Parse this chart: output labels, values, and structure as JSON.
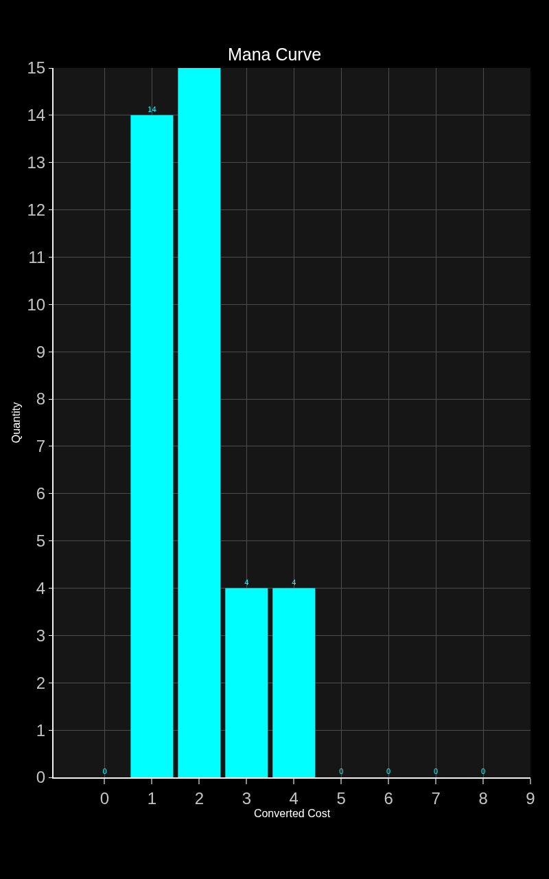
{
  "chart_data": {
    "type": "bar",
    "title": "Mana Curve",
    "xlabel": "Converted Cost",
    "ylabel": "Quantity",
    "x": [
      0,
      1,
      2,
      3,
      4,
      5,
      6,
      7,
      8
    ],
    "values": [
      0,
      14,
      15,
      4,
      4,
      0,
      0,
      0,
      0
    ],
    "value_labels": [
      "0",
      "14",
      null,
      "4",
      "4",
      "0",
      "0",
      "0",
      "0"
    ],
    "color": "#00ffff",
    "xlim": [
      -1.08,
      9
    ],
    "xticks": [
      0,
      1,
      2,
      3,
      4,
      5,
      6,
      7,
      8,
      9
    ],
    "ylim": [
      0,
      15
    ],
    "yticks": [
      0,
      1,
      2,
      3,
      4,
      5,
      6,
      7,
      8,
      9,
      10,
      11,
      12,
      13,
      14,
      15
    ],
    "grid": true
  }
}
